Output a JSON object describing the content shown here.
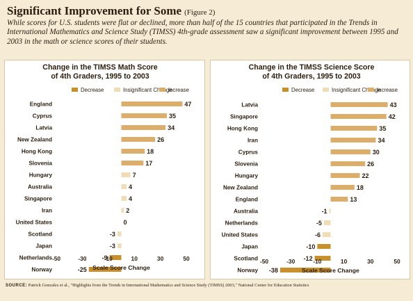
{
  "figure": {
    "title": "Significant Improvement for Some",
    "tag": "(Figure 2)",
    "description": "While scores for U.S. students were flat or declined, more than half of the 15 countries that participated in the Trends in International Mathematics and Science Study (TIMSS) 4th-grade assessment saw a significant improvement between 1995 and 2003 in the math or science scores of their students.",
    "source_label": "SOURCE:",
    "source_text": "Patrick Gonzales et al., \"Highlights from the Trends in International Mathematics and Science Study (TIMSS) 2003,\" National Center for Education Statistics"
  },
  "colors": {
    "decrease": "#c8902c",
    "insignificant": "#f0ddb6",
    "increase": "#dcae6c",
    "text": "#2b1d0e"
  },
  "chart_data": [
    {
      "type": "bar",
      "orientation": "horizontal",
      "title_lines": [
        "Change in the TIMSS Math Score",
        "of 4th Graders, 1995 to 2003"
      ],
      "xlabel": "Scale Score Change",
      "xlim": [
        -50,
        50
      ],
      "xticks": [
        -50,
        -30,
        -10,
        10,
        30,
        50
      ],
      "legend": [
        "Decrease",
        "Insignificant Change",
        "Increase"
      ],
      "legend_position": "top",
      "grid": false,
      "categories": [
        "England",
        "Cyprus",
        "Latvia",
        "New Zealand",
        "Hong Kong",
        "Slovenia",
        "Hungary",
        "Australia",
        "Singapore",
        "Iran",
        "United States",
        "Scotland",
        "Japan",
        "Netherlands",
        "Norway"
      ],
      "values": [
        47,
        35,
        34,
        26,
        18,
        17,
        7,
        4,
        4,
        2,
        0,
        -3,
        -3,
        -9,
        -25
      ],
      "status": [
        "increase",
        "increase",
        "increase",
        "increase",
        "increase",
        "increase",
        "insignificant",
        "insignificant",
        "insignificant",
        "insignificant",
        "insignificant",
        "insignificant",
        "insignificant",
        "decrease",
        "decrease"
      ]
    },
    {
      "type": "bar",
      "orientation": "horizontal",
      "title_lines": [
        "Change in the TIMSS Science Score",
        "of 4th Graders, 1995 to 2003"
      ],
      "xlabel": "Scale Score Change",
      "xlim": [
        -50,
        50
      ],
      "xticks": [
        -50,
        -30,
        -10,
        10,
        30,
        50
      ],
      "legend": [
        "Decrease",
        "Insignificant Change",
        "Increase"
      ],
      "legend_position": "top",
      "grid": false,
      "categories": [
        "Latvia",
        "Singapore",
        "Hong Kong",
        "Iran",
        "Cyprus",
        "Slovenia",
        "Hungary",
        "New Zealand",
        "England",
        "Australia",
        "Netherlands",
        "United States",
        "Japan",
        "Scotland",
        "Norway"
      ],
      "values": [
        43,
        42,
        35,
        34,
        30,
        26,
        22,
        18,
        13,
        -1,
        -5,
        -6,
        -10,
        -12,
        -38
      ],
      "status": [
        "increase",
        "increase",
        "increase",
        "increase",
        "increase",
        "increase",
        "increase",
        "increase",
        "increase",
        "insignificant",
        "insignificant",
        "insignificant",
        "decrease",
        "decrease",
        "decrease"
      ]
    }
  ]
}
